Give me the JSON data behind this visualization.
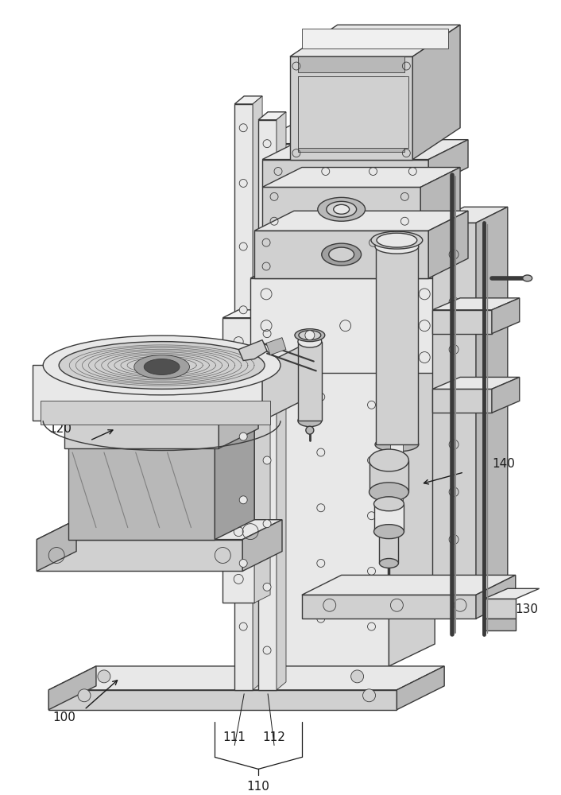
{
  "background_color": "#ffffff",
  "line_color": "#3a3a3a",
  "label_color": "#1a1a1a",
  "figsize": [
    7.06,
    10.0
  ],
  "dpi": 100,
  "label_fontsize": 11,
  "lw_main": 1.0,
  "lw_thin": 0.6,
  "colors": {
    "light": "#e8e8e8",
    "mid": "#d0d0d0",
    "dark": "#b8b8b8",
    "darker": "#a0a0a0",
    "white": "#f5f5f5",
    "very_light": "#f0f0f0"
  }
}
